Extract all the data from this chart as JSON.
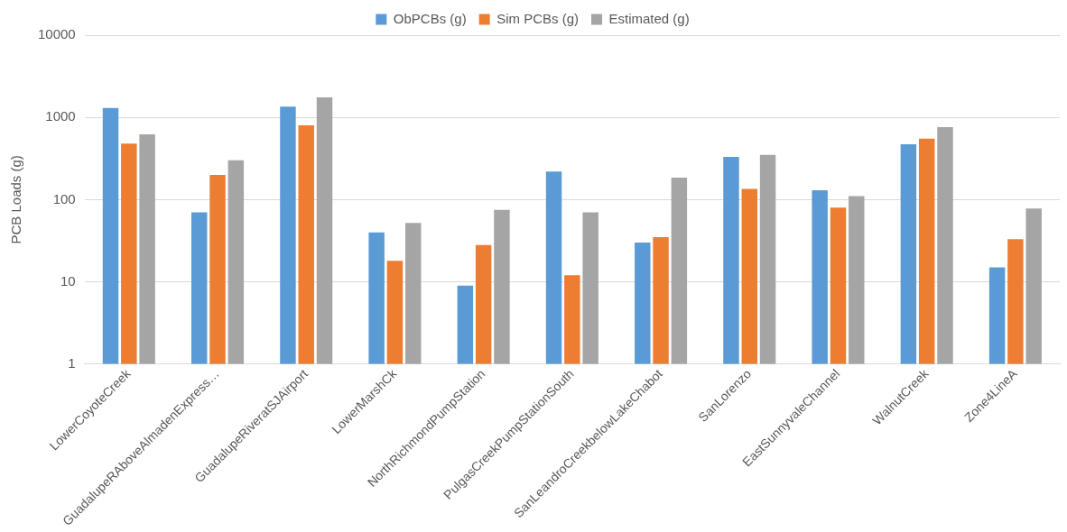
{
  "chart_data": {
    "type": "bar",
    "ylabel": "PCB Loads (g)",
    "categories": [
      "LowerCoyoteCreek",
      "GuadalupeRAboveAlmadenExpress…",
      "GuadalupeRiveratSJAirport",
      "LowerMarshCk",
      "NorthRichmondPumpStation",
      "PulgasCreekPumpStationSouth",
      "SanLeandroCreekbelowLakeChabot",
      "SanLorenzo",
      "EastSunnyvaleChannel",
      "WalnutCreek",
      "Zone4LineA"
    ],
    "series": [
      {
        "name": "ObPCBs (g)",
        "color": "#5b9bd5",
        "values": [
          1300,
          70,
          1350,
          40,
          9,
          220,
          30,
          330,
          130,
          470,
          15
        ]
      },
      {
        "name": "Sim PCBs (g)",
        "color": "#ed7d31",
        "values": [
          480,
          200,
          800,
          18,
          28,
          12,
          35,
          135,
          80,
          550,
          33
        ]
      },
      {
        "name": "Estimated (g)",
        "color": "#a5a5a5",
        "values": [
          620,
          300,
          1750,
          52,
          75,
          70,
          185,
          350,
          110,
          760,
          78
        ]
      }
    ],
    "log": "y",
    "ylim": [
      1,
      10000
    ],
    "yticks": [
      1,
      10,
      100,
      1000,
      10000
    ],
    "grid": "y",
    "legend": "top"
  }
}
